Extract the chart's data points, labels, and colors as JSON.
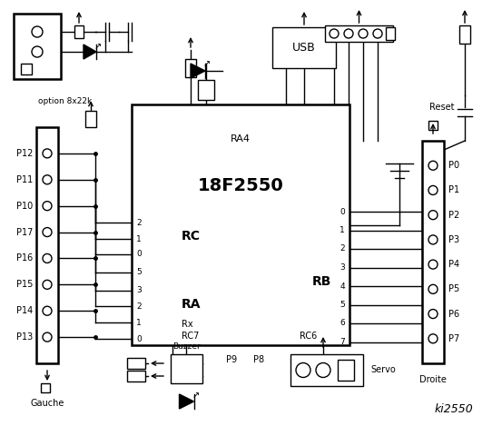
{
  "bg_color": "#ffffff",
  "title": "ki2550",
  "chip_label": "18F2550",
  "chip_sublabel": "RA4",
  "left_port_label": "Gauche",
  "right_port_label": "Droite",
  "usb_label": "USB",
  "reset_label": "Reset",
  "servo_label": "Servo",
  "buzzer_label": "Buzzer",
  "option_label": "option 8x22k",
  "rc_label": "RC",
  "ra_label": "RA",
  "rb_label": "RB",
  "rc6_label": "RC6",
  "rc7_label": "RC7",
  "rx_label": "Rx",
  "p9_label": "P9",
  "p8_label": "P8",
  "left_pins": [
    "P12",
    "P11",
    "P10",
    "P17",
    "P16",
    "P15",
    "P14",
    "P13"
  ],
  "left_pin_nums": [
    "2",
    "1",
    "0",
    "5",
    "3",
    "2",
    "1",
    "0"
  ],
  "right_pins": [
    "P0",
    "P1",
    "P2",
    "P3",
    "P4",
    "P5",
    "P6",
    "P7"
  ],
  "right_pin_nums": [
    "0",
    "1",
    "2",
    "3",
    "4",
    "5",
    "6",
    "7"
  ]
}
